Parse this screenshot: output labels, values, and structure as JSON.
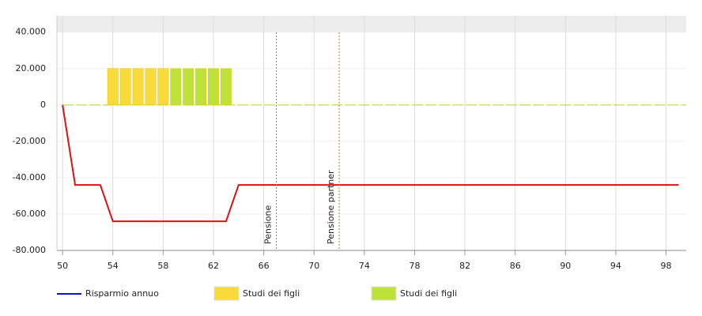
{
  "chart_data": {
    "type": "combo",
    "xlim": [
      49.55,
      99.6
    ],
    "xticks": [
      50,
      54,
      58,
      62,
      66,
      70,
      74,
      78,
      82,
      86,
      90,
      94,
      98
    ],
    "ylim": [
      -80000,
      49000
    ],
    "yticks": [
      {
        "value": 40000,
        "label": "40.000"
      },
      {
        "value": 20000,
        "label": "20.000"
      },
      0,
      {
        "value": -20000,
        "label": "-20.000"
      },
      {
        "value": -40000,
        "label": "-40.000"
      },
      {
        "value": -60000,
        "label": "-60.000"
      },
      {
        "value": -80000,
        "label": "-80.000"
      }
    ],
    "grid": true,
    "series": [
      {
        "name": "Risparmio annuo",
        "type": "line",
        "color": "#1010d0",
        "negative_color": "#dd1111",
        "x": [
          50,
          51,
          53,
          54,
          63,
          64,
          99
        ],
        "values": [
          0,
          -44000,
          -44000,
          -64000,
          -64000,
          -44000,
          -44000
        ]
      },
      {
        "name": "Studi dei figli",
        "type": "bar",
        "color": "#fada3a",
        "x": [
          54,
          55,
          56,
          57,
          58
        ],
        "values": [
          20000,
          20000,
          20000,
          20000,
          20000
        ]
      },
      {
        "name": "Studi dei figli",
        "type": "bar",
        "color": "#bfe23a",
        "x": [
          59,
          60,
          61,
          62,
          63
        ],
        "values": [
          20000,
          20000,
          20000,
          20000,
          20000
        ]
      }
    ],
    "plot_lines": [
      {
        "value": 67,
        "label": "Pensione",
        "color": "#c87a1e"
      },
      {
        "value": 72,
        "label": "Pensione partner",
        "color": "#c87a1e"
      }
    ]
  }
}
